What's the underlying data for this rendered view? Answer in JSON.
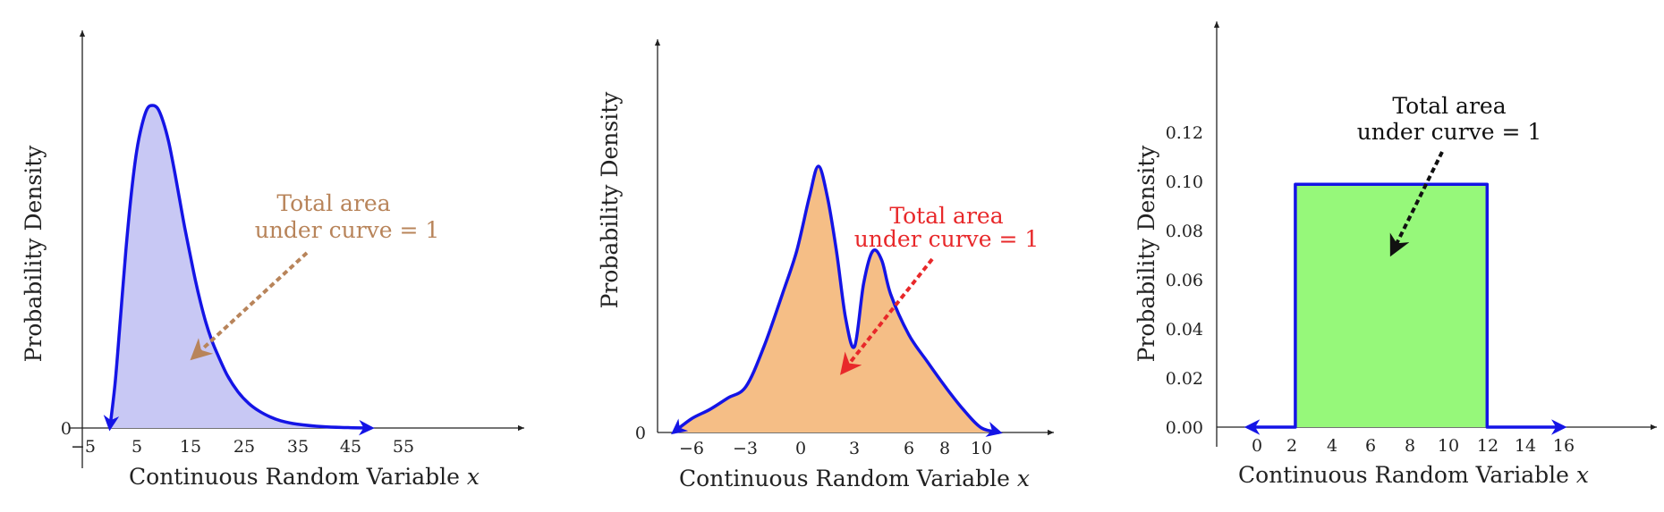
{
  "chart_data": [
    {
      "type": "area",
      "ylabel": "Probability Density",
      "xlabel": "Continuous Random Variable",
      "xlabel_var": "x",
      "x_ticks": [
        "−5",
        "5",
        "15",
        "25",
        "35",
        "45",
        "55"
      ],
      "y_ticks": [
        "0"
      ],
      "fill_color": "#c8c8f4",
      "line_color": "#1414e6",
      "annotation": {
        "lines": [
          "Total area",
          "under curve = 1"
        ],
        "color": "#b8845a"
      },
      "points": [
        [
          0,
          0
        ],
        [
          1,
          0.014
        ],
        [
          2,
          0.034
        ],
        [
          3,
          0.054
        ],
        [
          4,
          0.071
        ],
        [
          5,
          0.084
        ],
        [
          6,
          0.092
        ],
        [
          7,
          0.097
        ],
        [
          8,
          0.098
        ],
        [
          9,
          0.097
        ],
        [
          10,
          0.093
        ],
        [
          11,
          0.087
        ],
        [
          12,
          0.079
        ],
        [
          13,
          0.07
        ],
        [
          14,
          0.061
        ],
        [
          15,
          0.053
        ],
        [
          16,
          0.045
        ],
        [
          17,
          0.038
        ],
        [
          18,
          0.032
        ],
        [
          19,
          0.027
        ],
        [
          20,
          0.023
        ],
        [
          22,
          0.016
        ],
        [
          24,
          0.011
        ],
        [
          26,
          0.0075
        ],
        [
          28,
          0.0051
        ],
        [
          30,
          0.0034
        ],
        [
          32,
          0.0022
        ],
        [
          35,
          0.0012
        ],
        [
          40,
          0.0004
        ],
        [
          45,
          0.0001
        ],
        [
          49,
          0
        ]
      ]
    },
    {
      "type": "area",
      "ylabel": "Probability Density",
      "xlabel": "Continuous Random Variable",
      "xlabel_var": "x",
      "x_ticks": [
        "−6",
        "−3",
        "0",
        "3",
        "6",
        "8",
        "10"
      ],
      "y_ticks": [
        "0"
      ],
      "fill_color": "#f5be86",
      "line_color": "#1414e6",
      "annotation": {
        "lines": [
          "Total area",
          "under curve = 1"
        ],
        "color": "#e8282a"
      },
      "points": [
        [
          -7,
          0
        ],
        [
          -6,
          0.012
        ],
        [
          -5,
          0.02
        ],
        [
          -4,
          0.03
        ],
        [
          -3,
          0.04
        ],
        [
          -2,
          0.075
        ],
        [
          -1,
          0.12
        ],
        [
          -0.2,
          0.158
        ],
        [
          0.5,
          0.205
        ],
        [
          1,
          0.232
        ],
        [
          1.5,
          0.205
        ],
        [
          2,
          0.158
        ],
        [
          2.5,
          0.1
        ],
        [
          3,
          0.075
        ],
        [
          3.5,
          0.13
        ],
        [
          4,
          0.158
        ],
        [
          4.5,
          0.15
        ],
        [
          5,
          0.12
        ],
        [
          6,
          0.085
        ],
        [
          7,
          0.062
        ],
        [
          8,
          0.04
        ],
        [
          9,
          0.02
        ],
        [
          10,
          0.004
        ],
        [
          11,
          0
        ]
      ]
    },
    {
      "type": "area",
      "ylabel": "Probability Density",
      "xlabel": "Continuous Random Variable",
      "xlabel_var": "x",
      "x_ticks": [
        "0",
        "2",
        "4",
        "6",
        "8",
        "10",
        "12",
        "14",
        "16"
      ],
      "y_ticks": [
        "0.00",
        "0.02",
        "0.04",
        "0.06",
        "0.08",
        "0.10",
        "0.12"
      ],
      "fill_color": "#96f87a",
      "line_color": "#1414e6",
      "annotation": {
        "lines": [
          "Total area",
          "under curve = 1"
        ],
        "color": "#111111"
      },
      "points": [
        [
          -0.5,
          0
        ],
        [
          2,
          0
        ],
        [
          2,
          0.1
        ],
        [
          12,
          0.1
        ],
        [
          12,
          0
        ],
        [
          16,
          0
        ]
      ],
      "ylim": [
        0,
        0.12
      ]
    }
  ]
}
